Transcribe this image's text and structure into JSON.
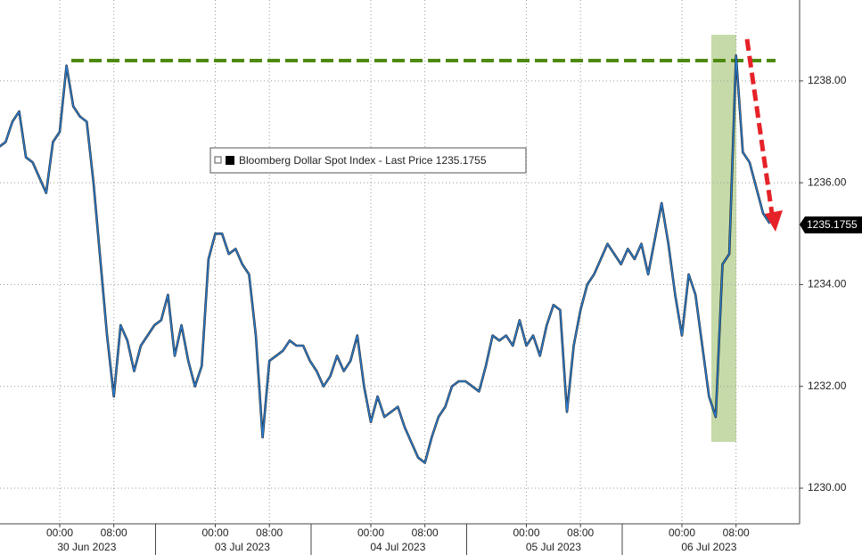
{
  "chart_data": {
    "type": "line",
    "categories": [
      null,
      null,
      null,
      null,
      null,
      null,
      null,
      null,
      null,
      "00:00",
      null,
      null,
      null,
      null,
      null,
      null,
      null,
      "08:00",
      null,
      null,
      null,
      null,
      null,
      null,
      null,
      null,
      null,
      null,
      null,
      null,
      null,
      null,
      "00:00",
      null,
      null,
      null,
      null,
      null,
      null,
      null,
      "08:00",
      null,
      null,
      null,
      null,
      null,
      null,
      null,
      null,
      null,
      null,
      null,
      null,
      null,
      null,
      "00:00",
      null,
      null,
      null,
      null,
      null,
      null,
      null,
      "08:00",
      null,
      null,
      null,
      null,
      null,
      null,
      null,
      null,
      null,
      null,
      null,
      null,
      null,
      null,
      "00:00",
      null,
      null,
      null,
      null,
      null,
      null,
      null,
      "08:00",
      null,
      null,
      null,
      null,
      null,
      null,
      null,
      null,
      null,
      null,
      null,
      null,
      null,
      null,
      "00:00",
      null,
      null,
      null,
      null,
      null,
      null,
      null,
      "08:00",
      null,
      null,
      null,
      null,
      null
    ],
    "dates": [
      "30 Jun 2023",
      "03 Jul 2023",
      "04 Jul 2023",
      "05 Jul 2023",
      "06 Jul 2023"
    ],
    "series": [
      {
        "name": "Bloomberg Dollar Spot Index - Last Price 1235.1755",
        "color": "#2a7fd4",
        "values": [
          1236.7,
          1236.8,
          1237.2,
          1237.4,
          1236.5,
          1236.4,
          1236.1,
          1235.8,
          1236.8,
          1237.0,
          1238.3,
          1237.5,
          1237.3,
          1237.2,
          1236.0,
          1234.5,
          1233.0,
          1231.8,
          1233.2,
          1232.9,
          1232.3,
          1232.8,
          1233.0,
          1233.2,
          1233.3,
          1233.8,
          1232.6,
          1233.2,
          1232.5,
          1232.0,
          1232.4,
          1234.5,
          1235.0,
          1235.0,
          1234.6,
          1234.7,
          1234.4,
          1234.2,
          1233.0,
          1231.0,
          1232.5,
          1232.6,
          1232.7,
          1232.9,
          1232.8,
          1232.8,
          1232.5,
          1232.3,
          1232.0,
          1232.2,
          1232.6,
          1232.3,
          1232.5,
          1233.0,
          1232.0,
          1231.3,
          1231.8,
          1231.4,
          1231.5,
          1231.6,
          1231.2,
          1230.9,
          1230.6,
          1230.5,
          1231.0,
          1231.4,
          1231.6,
          1232.0,
          1232.1,
          1232.1,
          1232.0,
          1231.9,
          1232.4,
          1233.0,
          1232.9,
          1233.0,
          1232.8,
          1233.3,
          1232.8,
          1233.0,
          1232.6,
          1233.2,
          1233.6,
          1233.5,
          1231.5,
          1232.8,
          1233.5,
          1234.0,
          1234.2,
          1234.5,
          1234.8,
          1234.6,
          1234.4,
          1234.7,
          1234.5,
          1234.8,
          1234.2,
          1234.9,
          1235.6,
          1234.8,
          1233.8,
          1233.0,
          1234.2,
          1233.8,
          1232.8,
          1231.8,
          1231.4,
          1234.4,
          1234.6,
          1238.5,
          1236.6,
          1236.4,
          1235.9,
          1235.4,
          1235.2
        ]
      }
    ],
    "hline": {
      "value": 1238.4,
      "color": "#4f8a10"
    },
    "last_price": 1235.1755,
    "ylim": [
      1229.3,
      1239.59
    ],
    "yticks": [
      {
        "value": 1230,
        "label": "1230.00"
      },
      {
        "value": 1232,
        "label": "1232.00"
      },
      {
        "value": 1234,
        "label": "1234.00"
      },
      {
        "value": 1236,
        "label": "1236.00"
      },
      {
        "value": 1238,
        "label": "1238.00"
      }
    ],
    "grid": true
  }
}
